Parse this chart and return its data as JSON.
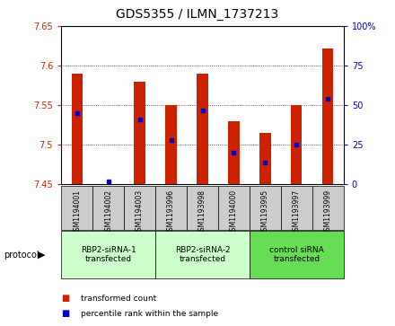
{
  "title": "GDS5355 / ILMN_1737213",
  "samples": [
    "GSM1194001",
    "GSM1194002",
    "GSM1194003",
    "GSM1193996",
    "GSM1193998",
    "GSM1194000",
    "GSM1193995",
    "GSM1193997",
    "GSM1193999"
  ],
  "red_values": [
    7.59,
    7.45,
    7.58,
    7.55,
    7.59,
    7.53,
    7.515,
    7.55,
    7.622
  ],
  "blue_values": [
    7.54,
    7.453,
    7.532,
    7.506,
    7.543,
    7.49,
    7.477,
    7.5,
    7.558
  ],
  "ymin": 7.45,
  "ymax": 7.65,
  "yticks": [
    7.45,
    7.5,
    7.55,
    7.6,
    7.65
  ],
  "right_yticks": [
    0,
    25,
    50,
    75,
    100
  ],
  "groups": [
    {
      "label": "RBP2-siRNA-1\ntransfected",
      "start": 0,
      "end": 3,
      "color": "#ccffcc"
    },
    {
      "label": "RBP2-siRNA-2\ntransfected",
      "start": 3,
      "end": 6,
      "color": "#ccffcc"
    },
    {
      "label": "control siRNA\ntransfected",
      "start": 6,
      "end": 9,
      "color": "#66dd55"
    }
  ],
  "bar_color": "#cc2200",
  "dot_color": "#0000cc",
  "bar_width": 0.35,
  "bg_color": "#ffffff",
  "sample_bg": "#cccccc",
  "title_fontsize": 10,
  "tick_fontsize": 7,
  "label_fontsize": 7
}
